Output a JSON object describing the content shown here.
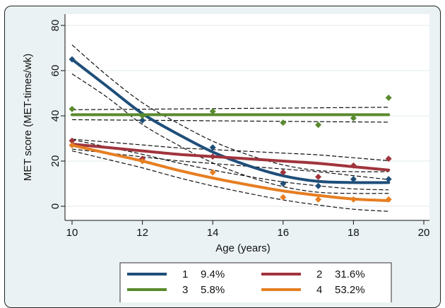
{
  "chart_data": {
    "type": "line",
    "xlabel": "Age (years)",
    "ylabel": "MET score (MET-times/wk)",
    "xlim": [
      10,
      20
    ],
    "ylim": [
      0,
      80
    ],
    "x_ticks": [
      10,
      12,
      14,
      16,
      18,
      20
    ],
    "y_ticks": [
      0,
      20,
      40,
      60,
      80
    ],
    "grid": "horizontal",
    "legend_position": "bottom",
    "series": [
      {
        "name": "1",
        "share": "9.4%",
        "color": "#1f4e79",
        "fitted": {
          "x": [
            10,
            11,
            12,
            13,
            14,
            15,
            16,
            17,
            18,
            19
          ],
          "y": [
            65,
            53,
            41,
            32,
            24,
            18,
            13.5,
            11,
            10.5,
            10.5
          ]
        },
        "observed": {
          "x": [
            10,
            12,
            14,
            16,
            17,
            18,
            19
          ],
          "y": [
            65,
            38,
            26,
            10,
            9,
            12,
            12
          ]
        }
      },
      {
        "name": "2",
        "share": "31.6%",
        "color": "#a0343d",
        "fitted": {
          "x": [
            10,
            11,
            12,
            13,
            14,
            15,
            16,
            17,
            18,
            19
          ],
          "y": [
            27.5,
            26,
            24.5,
            23,
            22,
            21,
            20,
            19,
            17.5,
            16
          ]
        },
        "observed": {
          "x": [
            10,
            12,
            14,
            16,
            17,
            18,
            19
          ],
          "y": [
            29,
            21,
            22,
            15,
            13,
            18,
            21
          ]
        }
      },
      {
        "name": "3",
        "share": "5.8%",
        "color": "#5a8a2e",
        "fitted": {
          "x": [
            10,
            19
          ],
          "y": [
            40.5,
            40.5
          ]
        },
        "observed": {
          "x": [
            10,
            12,
            14,
            16,
            17,
            18,
            19
          ],
          "y": [
            43,
            40,
            42,
            37,
            36,
            39,
            48
          ]
        }
      },
      {
        "name": "4",
        "share": "53.2%",
        "color": "#e67e22",
        "fitted": {
          "x": [
            10,
            11,
            12,
            13,
            14,
            15,
            16,
            17,
            18,
            19
          ],
          "y": [
            27,
            23.5,
            20,
            16,
            12.5,
            9.5,
            6.8,
            4.8,
            3.2,
            2.5
          ]
        },
        "observed": {
          "x": [
            10,
            12,
            14,
            16,
            17,
            18,
            19
          ],
          "y": [
            27,
            20,
            15,
            4,
            3,
            3,
            3
          ]
        }
      }
    ]
  }
}
